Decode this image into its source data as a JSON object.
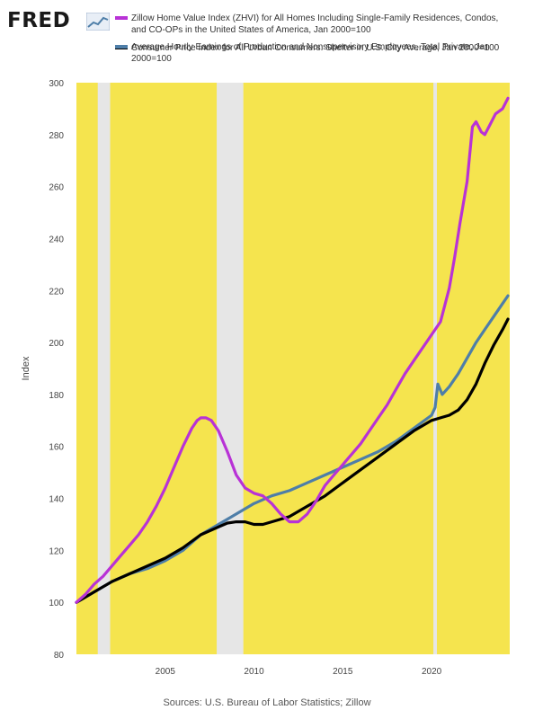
{
  "header": {
    "logo_text": "FRED",
    "logo_icon": "fred-chart-icon"
  },
  "legend": [
    {
      "label": "Zillow Home Value Index (ZHVI) for All Homes Including Single-Family Residences, Condos, and CO-OPs in the United States of America, Jan 2000=100",
      "color": "#b832d6"
    },
    {
      "label": "Consumer Price Index for All Urban Consumers: Shelter in U.S. City Average, Jan 2000=100",
      "color": "#000000"
    },
    {
      "label": "Average Hourly Earnings of Production and Nonsupervisory Employees, Total Private, Jan 2000=100",
      "color": "#4e7ea8"
    }
  ],
  "footer": {
    "source": "Sources: U.S. Bureau of Labor Statistics; Zillow"
  },
  "chart_data": {
    "type": "line",
    "title": "",
    "xlabel": "",
    "ylabel": "Index",
    "xlim": [
      2000.0,
      2024.4
    ],
    "ylim": [
      80,
      300
    ],
    "yticks": [
      80,
      100,
      120,
      140,
      160,
      180,
      200,
      220,
      240,
      260,
      280,
      300
    ],
    "xticks": [
      2005,
      2010,
      2015,
      2020
    ],
    "grid": false,
    "background_color": "#f5e44e",
    "recession_color": "#e6e6e6",
    "recessions": [
      [
        2001.2,
        2001.9
      ],
      [
        2007.9,
        2009.4
      ],
      [
        2020.1,
        2020.3
      ]
    ],
    "series": [
      {
        "name": "Zillow Home Value Index (ZHVI) for All Homes Including Single-Family Residences, Condos, and CO-OPs in the United States of America, Jan 2000=100",
        "color": "#b832d6",
        "x": [
          2000.0,
          2000.5,
          2001.0,
          2001.5,
          2002.0,
          2002.5,
          2003.0,
          2003.5,
          2004.0,
          2004.5,
          2005.0,
          2005.5,
          2006.0,
          2006.5,
          2006.8,
          2007.0,
          2007.3,
          2007.6,
          2008.0,
          2008.5,
          2009.0,
          2009.5,
          2010.0,
          2010.5,
          2011.0,
          2011.5,
          2012.0,
          2012.5,
          2013.0,
          2013.5,
          2014.0,
          2014.5,
          2015.0,
          2015.5,
          2016.0,
          2016.5,
          2017.0,
          2017.5,
          2018.0,
          2018.5,
          2019.0,
          2019.5,
          2020.0,
          2020.5,
          2021.0,
          2021.3,
          2021.6,
          2022.0,
          2022.3,
          2022.5,
          2022.8,
          2023.0,
          2023.3,
          2023.6,
          2024.0,
          2024.3
        ],
        "values": [
          100,
          103,
          107,
          110,
          114,
          118,
          122,
          126,
          131,
          137,
          144,
          152,
          160,
          167,
          170,
          171,
          171,
          170,
          166,
          158,
          149,
          144,
          142,
          141,
          138,
          134,
          131,
          131,
          134,
          139,
          145,
          149,
          153,
          157,
          161,
          166,
          171,
          176,
          182,
          188,
          193,
          198,
          203,
          208,
          221,
          233,
          246,
          262,
          283,
          285,
          281,
          280,
          284,
          288,
          290,
          294
        ]
      },
      {
        "name": "Consumer Price Index for All Urban Consumers: Shelter in U.S. City Average, Jan 2000=100",
        "color": "#000000",
        "x": [
          2000.0,
          2001.0,
          2002.0,
          2003.0,
          2004.0,
          2005.0,
          2006.0,
          2007.0,
          2008.0,
          2008.5,
          2009.0,
          2009.5,
          2010.0,
          2010.5,
          2011.0,
          2012.0,
          2013.0,
          2014.0,
          2015.0,
          2016.0,
          2017.0,
          2018.0,
          2019.0,
          2020.0,
          2020.5,
          2021.0,
          2021.5,
          2022.0,
          2022.5,
          2023.0,
          2023.5,
          2024.0,
          2024.3
        ],
        "values": [
          100,
          104,
          108,
          111,
          114,
          117,
          121,
          126,
          129,
          130.5,
          131,
          131,
          130,
          130,
          131,
          133,
          137,
          141,
          146,
          151,
          156,
          161,
          166,
          170,
          171,
          172,
          174,
          178,
          184,
          192,
          199,
          205,
          209
        ]
      },
      {
        "name": "Average Hourly Earnings of Production and Nonsupervisory Employees, Total Private, Jan 2000=100",
        "color": "#4e7ea8",
        "x": [
          2000.0,
          2001.0,
          2002.0,
          2003.0,
          2004.0,
          2005.0,
          2006.0,
          2007.0,
          2008.0,
          2009.0,
          2010.0,
          2011.0,
          2012.0,
          2013.0,
          2014.0,
          2015.0,
          2016.0,
          2017.0,
          2018.0,
          2019.0,
          2020.0,
          2020.2,
          2020.35,
          2020.6,
          2021.0,
          2021.5,
          2022.0,
          2022.5,
          2023.0,
          2023.5,
          2024.0,
          2024.3
        ],
        "values": [
          100,
          104,
          108,
          111,
          113,
          116,
          120,
          126,
          130,
          134,
          138,
          141,
          143,
          146,
          149,
          152,
          155,
          158,
          162,
          167,
          172,
          175,
          184,
          180,
          183,
          188,
          194,
          200,
          205,
          210,
          215,
          218
        ]
      }
    ]
  }
}
